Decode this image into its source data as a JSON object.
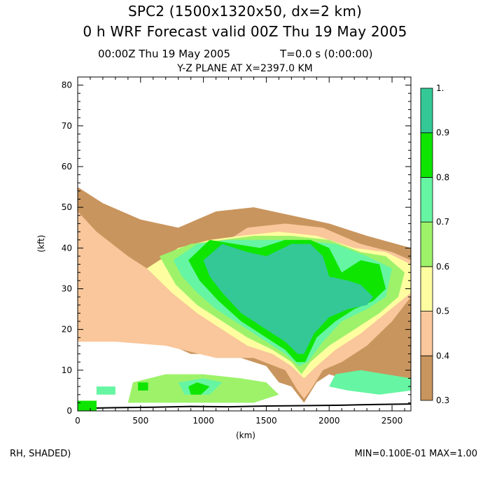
{
  "header": {
    "line1": "SPC2 (1500x1320x50, dx=2 km)",
    "line2": "0 h WRF Forecast valid 00Z Thu 19 May 2005",
    "time": "00:00Z Thu 19 May 2005",
    "timer": "T=0.0 s (0:00:00)",
    "plane": "Y-Z PLANE AT X=2397.0 KM"
  },
  "footer": {
    "left": "RH, SHADED)",
    "right": "MIN=0.100E-01 MAX=1.00"
  },
  "chart_data": {
    "type": "heatmap",
    "xlabel": "(km)",
    "ylabel": "(kft)",
    "xlim": [
      0,
      2650
    ],
    "ylim": [
      0,
      82
    ],
    "x_ticks": [
      "0",
      "500",
      "1000",
      "1500",
      "2000",
      "2500"
    ],
    "x_tick_values": [
      0,
      500,
      1000,
      1500,
      2000,
      2500
    ],
    "y_ticks": [
      "0",
      "10",
      "20",
      "30",
      "40",
      "50",
      "60",
      "70",
      "80"
    ],
    "y_tick_values": [
      0,
      10,
      20,
      30,
      40,
      50,
      60,
      70,
      80
    ],
    "colorbar": {
      "labels": [
        "1.",
        "0.9",
        "0.8",
        "0.7",
        "0.6",
        "0.5",
        "0.4",
        "0.3"
      ],
      "levels": [
        0.3,
        0.4,
        0.5,
        0.6,
        0.7,
        0.8,
        0.9,
        1.0
      ],
      "colors": [
        "#c9955e",
        "#f9c79b",
        "#fefea0",
        "#9ef26a",
        "#66f5a2",
        "#0ee500",
        "#33c896"
      ]
    },
    "regions": [
      {
        "level": 0.3,
        "points": [
          [
            0,
            55
          ],
          [
            200,
            51
          ],
          [
            500,
            47
          ],
          [
            800,
            45
          ],
          [
            1100,
            49
          ],
          [
            1400,
            50
          ],
          [
            1700,
            48
          ],
          [
            2000,
            46
          ],
          [
            2300,
            43
          ],
          [
            2650,
            40
          ],
          [
            2650,
            7
          ],
          [
            2400,
            8
          ],
          [
            2200,
            7
          ],
          [
            2000,
            9
          ],
          [
            1900,
            7
          ],
          [
            1800,
            2
          ],
          [
            1700,
            6
          ],
          [
            1600,
            7
          ],
          [
            1500,
            11
          ],
          [
            1200,
            14
          ],
          [
            900,
            14
          ],
          [
            600,
            18
          ],
          [
            300,
            19
          ],
          [
            0,
            19
          ]
        ]
      },
      {
        "level": 0.4,
        "points": [
          [
            0,
            49
          ],
          [
            150,
            44
          ],
          [
            400,
            38
          ],
          [
            650,
            33
          ],
          [
            900,
            31
          ],
          [
            1100,
            40
          ],
          [
            1350,
            45
          ],
          [
            1650,
            46
          ],
          [
            1950,
            45
          ],
          [
            2250,
            41
          ],
          [
            2500,
            39
          ],
          [
            2650,
            37
          ],
          [
            2650,
            28
          ],
          [
            2500,
            22
          ],
          [
            2300,
            16
          ],
          [
            2100,
            12
          ],
          [
            1950,
            10
          ],
          [
            1850,
            5
          ],
          [
            1800,
            3
          ],
          [
            1750,
            5
          ],
          [
            1650,
            10
          ],
          [
            1400,
            13
          ],
          [
            1100,
            13
          ],
          [
            700,
            16
          ],
          [
            300,
            17
          ],
          [
            0,
            17
          ]
        ]
      },
      {
        "level": 0.5,
        "points": [
          [
            550,
            35
          ],
          [
            800,
            40
          ],
          [
            1050,
            42
          ],
          [
            1300,
            43
          ],
          [
            1600,
            44
          ],
          [
            1900,
            43
          ],
          [
            2200,
            40
          ],
          [
            2450,
            39
          ],
          [
            2650,
            36
          ],
          [
            2650,
            29
          ],
          [
            2450,
            24
          ],
          [
            2250,
            19
          ],
          [
            2050,
            15
          ],
          [
            1900,
            11
          ],
          [
            1800,
            8
          ],
          [
            1700,
            11
          ],
          [
            1550,
            14
          ],
          [
            1350,
            16
          ],
          [
            1150,
            20
          ],
          [
            950,
            24
          ],
          [
            750,
            29
          ]
        ]
      },
      {
        "level": 0.6,
        "points": [
          [
            650,
            38
          ],
          [
            900,
            41
          ],
          [
            1150,
            42
          ],
          [
            1400,
            43
          ],
          [
            1700,
            43
          ],
          [
            2000,
            42
          ],
          [
            2250,
            39
          ],
          [
            2450,
            38
          ],
          [
            2600,
            34
          ],
          [
            2550,
            28
          ],
          [
            2400,
            24
          ],
          [
            2200,
            20
          ],
          [
            2000,
            16
          ],
          [
            1850,
            12
          ],
          [
            1780,
            9
          ],
          [
            1700,
            12
          ],
          [
            1550,
            15
          ],
          [
            1350,
            18
          ],
          [
            1150,
            22
          ],
          [
            950,
            26
          ],
          [
            780,
            31
          ]
        ]
      },
      {
        "level": 0.7,
        "points": [
          [
            760,
            37
          ],
          [
            950,
            41
          ],
          [
            1200,
            42
          ],
          [
            1450,
            42
          ],
          [
            1750,
            42
          ],
          [
            2050,
            41
          ],
          [
            2300,
            38
          ],
          [
            2500,
            35
          ],
          [
            2450,
            28
          ],
          [
            2300,
            25
          ],
          [
            2100,
            22
          ],
          [
            1950,
            17
          ],
          [
            1830,
            12
          ],
          [
            1760,
            11
          ],
          [
            1650,
            14
          ],
          [
            1500,
            17
          ],
          [
            1300,
            21
          ],
          [
            1100,
            25
          ],
          [
            950,
            29
          ],
          [
            830,
            33
          ]
        ]
      },
      {
        "level": 0.8,
        "points": [
          [
            880,
            37
          ],
          [
            1050,
            42
          ],
          [
            1250,
            41
          ],
          [
            1450,
            40
          ],
          [
            1650,
            42
          ],
          [
            1850,
            42
          ],
          [
            2000,
            40
          ],
          [
            2100,
            34
          ],
          [
            2250,
            37
          ],
          [
            2400,
            36
          ],
          [
            2450,
            30
          ],
          [
            2350,
            27
          ],
          [
            2200,
            25
          ],
          [
            2050,
            22
          ],
          [
            1900,
            18
          ],
          [
            1810,
            12
          ],
          [
            1740,
            12
          ],
          [
            1650,
            15
          ],
          [
            1500,
            18
          ],
          [
            1300,
            22
          ],
          [
            1120,
            27
          ],
          [
            970,
            32
          ]
        ]
      },
      {
        "level": 0.9,
        "points": [
          [
            1000,
            37
          ],
          [
            1150,
            41
          ],
          [
            1350,
            39
          ],
          [
            1500,
            38
          ],
          [
            1700,
            41
          ],
          [
            1850,
            41
          ],
          [
            1950,
            38
          ],
          [
            2000,
            33
          ],
          [
            2150,
            32
          ],
          [
            2250,
            31
          ],
          [
            2350,
            28
          ],
          [
            2300,
            26
          ],
          [
            2150,
            25
          ],
          [
            2000,
            23
          ],
          [
            1880,
            19
          ],
          [
            1800,
            14
          ],
          [
            1750,
            14
          ],
          [
            1650,
            17
          ],
          [
            1500,
            20
          ],
          [
            1300,
            24
          ],
          [
            1150,
            29
          ],
          [
            1050,
            33
          ]
        ]
      },
      {
        "level": 0.6,
        "points": [
          [
            440,
            7
          ],
          [
            700,
            9
          ],
          [
            1000,
            9
          ],
          [
            1300,
            8
          ],
          [
            1500,
            7
          ],
          [
            1600,
            4
          ],
          [
            1400,
            2
          ],
          [
            1000,
            2
          ],
          [
            600,
            2
          ],
          [
            400,
            2
          ]
        ]
      },
      {
        "level": 0.7,
        "points": [
          [
            800,
            7
          ],
          [
            1000,
            8
          ],
          [
            1150,
            7
          ],
          [
            1050,
            4
          ],
          [
            850,
            4
          ]
        ]
      },
      {
        "level": 0.8,
        "points": [
          [
            880,
            6
          ],
          [
            950,
            7
          ],
          [
            1050,
            6
          ],
          [
            980,
            4
          ],
          [
            900,
            4
          ]
        ]
      },
      {
        "level": 0.7,
        "points": [
          [
            150,
            6
          ],
          [
            300,
            6
          ],
          [
            300,
            4
          ],
          [
            150,
            4
          ]
        ]
      },
      {
        "level": 0.8,
        "points": [
          [
            480,
            7
          ],
          [
            560,
            7
          ],
          [
            560,
            5
          ],
          [
            480,
            5
          ]
        ]
      },
      {
        "level": 0.7,
        "points": [
          [
            2050,
            9
          ],
          [
            2250,
            10
          ],
          [
            2450,
            9
          ],
          [
            2650,
            8
          ],
          [
            2650,
            5
          ],
          [
            2400,
            4
          ],
          [
            2150,
            5
          ],
          [
            2000,
            6
          ]
        ]
      }
    ]
  }
}
